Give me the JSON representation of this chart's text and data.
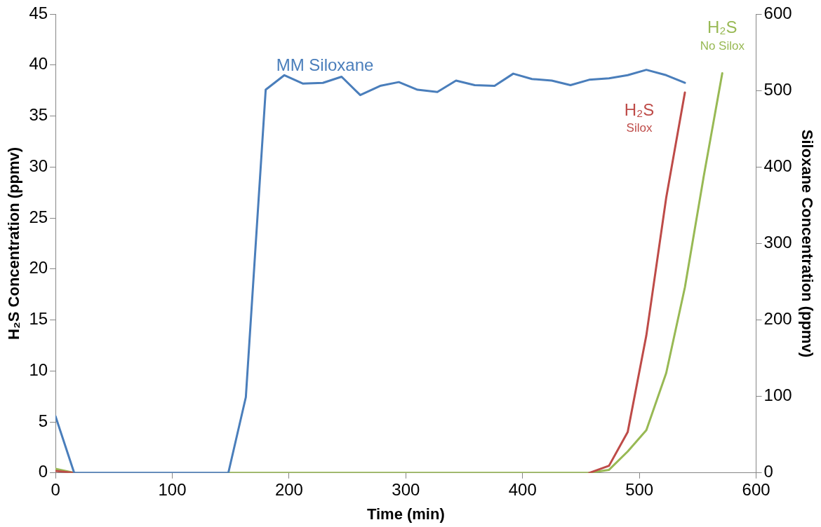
{
  "chart_data": {
    "type": "line",
    "xlabel": "Time (min)",
    "ylabel": "H₂S Concentration (ppmv)",
    "y2label": "Siloxane Concentration (ppmv)",
    "xlim": [
      0,
      600
    ],
    "xticks": [
      0,
      100,
      200,
      300,
      400,
      500,
      600
    ],
    "ylim": [
      0,
      45
    ],
    "yticks": [
      0,
      5,
      10,
      15,
      20,
      25,
      30,
      35,
      40,
      45
    ],
    "y2lim": [
      0,
      600
    ],
    "y2ticks": [
      0,
      100,
      200,
      300,
      400,
      500,
      600
    ],
    "grid": false,
    "legend": false,
    "marker": "none",
    "line_style": "solid",
    "series": [
      {
        "name": "MM Siloxane",
        "color": "#4a7ebb",
        "axis": "y2",
        "x": [
          0,
          16,
          33,
          49,
          65,
          82,
          98,
          114,
          131,
          148,
          163,
          180,
          196,
          212,
          229,
          245,
          261,
          278,
          294,
          310,
          327,
          343,
          359,
          376,
          392,
          408,
          425,
          441,
          457,
          474,
          490,
          506,
          523,
          539
        ],
        "values": [
          74,
          0,
          0,
          0,
          0,
          0,
          0,
          0,
          0,
          0,
          99,
          501,
          520,
          509,
          510,
          518,
          494,
          506,
          511,
          501,
          498,
          513,
          507,
          506,
          522,
          515,
          513,
          507,
          514,
          516,
          520,
          527,
          520,
          510
        ]
      },
      {
        "name": "H₂S Silox",
        "color": "#be4b48",
        "x": [
          0,
          16,
          33,
          49,
          65,
          82,
          98,
          114,
          131,
          148,
          163,
          180,
          196,
          212,
          229,
          245,
          261,
          278,
          294,
          310,
          327,
          343,
          359,
          376,
          392,
          408,
          425,
          441,
          457,
          474,
          490,
          506,
          523,
          539
        ],
        "values": [
          0.2,
          0,
          null,
          null,
          null,
          null,
          null,
          null,
          null,
          null,
          null,
          null,
          null,
          null,
          null,
          null,
          null,
          null,
          null,
          null,
          null,
          null,
          null,
          null,
          null,
          null,
          null,
          null,
          0,
          0.7,
          4,
          13.5,
          27,
          37.3
        ]
      },
      {
        "name": "H₂S No Silox",
        "color": "#98b954",
        "x": [
          0,
          16,
          33,
          49,
          65,
          82,
          98,
          114,
          131,
          148,
          163,
          180,
          196,
          212,
          229,
          245,
          261,
          278,
          294,
          310,
          327,
          343,
          359,
          376,
          392,
          408,
          425,
          441,
          457,
          474,
          490,
          506,
          523,
          539,
          555,
          571
        ],
        "values": [
          0.4,
          0,
          null,
          null,
          null,
          null,
          null,
          null,
          null,
          0,
          0,
          0,
          0,
          0,
          0,
          0,
          0,
          0,
          0,
          0,
          0,
          0,
          0,
          0,
          0,
          0,
          0,
          0,
          0,
          0.3,
          2.1,
          4.2,
          9.8,
          18.2,
          29,
          39.2
        ]
      }
    ]
  }
}
